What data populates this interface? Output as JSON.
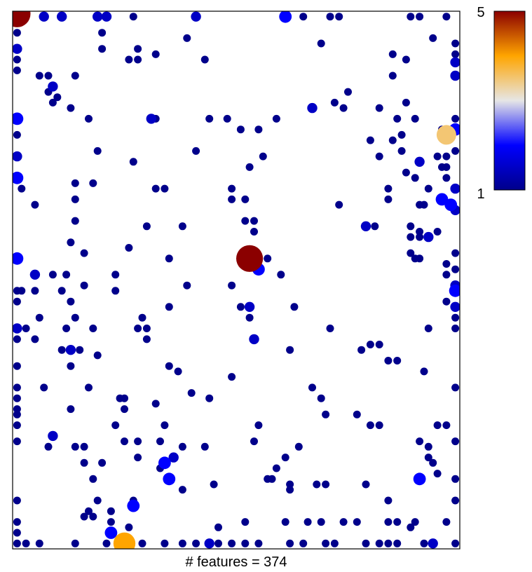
{
  "chart_data": {
    "type": "scatter",
    "title": "",
    "xlabel": "# features = 374",
    "ylabel": "",
    "x_axis_ticks": false,
    "y_axis_ticks": false,
    "grid": false,
    "legend": "colorbar-top-right",
    "size_encodes": "value",
    "color_encodes": "value",
    "colorbar": {
      "min": 1,
      "max": 5,
      "tick_labels": [
        "5",
        "1"
      ],
      "colors": [
        "#00008b",
        "#0000ff",
        "#e6e6e6",
        "#ffa500",
        "#8b0000"
      ]
    },
    "xlim": [
      0,
      100
    ],
    "ylim": [
      0,
      100
    ],
    "points": [
      [
        1,
        99.5,
        5
      ],
      [
        7,
        99,
        1.5
      ],
      [
        11,
        99,
        1.5
      ],
      [
        19,
        99,
        1.5
      ],
      [
        21,
        99,
        1.5
      ],
      [
        27,
        99,
        1
      ],
      [
        41,
        99,
        1.5
      ],
      [
        61,
        99,
        2
      ],
      [
        65,
        99,
        1
      ],
      [
        71,
        99,
        1
      ],
      [
        73,
        99,
        1
      ],
      [
        89,
        99,
        1
      ],
      [
        91,
        99,
        1
      ],
      [
        97,
        99,
        1
      ],
      [
        1,
        96,
        1
      ],
      [
        20,
        96,
        1
      ],
      [
        39,
        95,
        1
      ],
      [
        69,
        94,
        1
      ],
      [
        94,
        95,
        1
      ],
      [
        99,
        94,
        1
      ],
      [
        1,
        93,
        1.5
      ],
      [
        1,
        91,
        1
      ],
      [
        20,
        93,
        1
      ],
      [
        28,
        93,
        1
      ],
      [
        32,
        92,
        1
      ],
      [
        43,
        91,
        1
      ],
      [
        26,
        91,
        1
      ],
      [
        28,
        91,
        1
      ],
      [
        85,
        92,
        1
      ],
      [
        88,
        91,
        1
      ],
      [
        99,
        92,
        1
      ],
      [
        99,
        90.5,
        1.5
      ],
      [
        1,
        89,
        1
      ],
      [
        6,
        88,
        1
      ],
      [
        8,
        88,
        1
      ],
      [
        14,
        88,
        1
      ],
      [
        85,
        88,
        1
      ],
      [
        99,
        88,
        1.5
      ],
      [
        9,
        86,
        1.5
      ],
      [
        8,
        85,
        1
      ],
      [
        10,
        84,
        1
      ],
      [
        75,
        85,
        1
      ],
      [
        9,
        83,
        1
      ],
      [
        13,
        82,
        1
      ],
      [
        67,
        82,
        1.5
      ],
      [
        72,
        83,
        1
      ],
      [
        74,
        82,
        1
      ],
      [
        82,
        82,
        1
      ],
      [
        88,
        83,
        1
      ],
      [
        1,
        80,
        2
      ],
      [
        17,
        80,
        1
      ],
      [
        31,
        80,
        1.5
      ],
      [
        32,
        80,
        1
      ],
      [
        44,
        80,
        1
      ],
      [
        48,
        80,
        1
      ],
      [
        59,
        80,
        1
      ],
      [
        86,
        80,
        1
      ],
      [
        90,
        80,
        1
      ],
      [
        99,
        80,
        1
      ],
      [
        51,
        78,
        1
      ],
      [
        55,
        78,
        1
      ],
      [
        96,
        78,
        1
      ],
      [
        99,
        78,
        2
      ],
      [
        97,
        77,
        3.5
      ],
      [
        1,
        77,
        1
      ],
      [
        87,
        77,
        1
      ],
      [
        80,
        76,
        1
      ],
      [
        85,
        76,
        1
      ],
      [
        1,
        73,
        1.5
      ],
      [
        19,
        74,
        1
      ],
      [
        41,
        74,
        1
      ],
      [
        99,
        74,
        1
      ],
      [
        91,
        72,
        1.5
      ],
      [
        56,
        73,
        1
      ],
      [
        82,
        73,
        1
      ],
      [
        87,
        74,
        1
      ],
      [
        95,
        73,
        1
      ],
      [
        97,
        73,
        1
      ],
      [
        1,
        69,
        2
      ],
      [
        96,
        71,
        1
      ],
      [
        53,
        71,
        1
      ],
      [
        27,
        72,
        1
      ],
      [
        97,
        71,
        1
      ],
      [
        14,
        68,
        1
      ],
      [
        18,
        68,
        1
      ],
      [
        97,
        69,
        1
      ],
      [
        88,
        70,
        1
      ],
      [
        90,
        69,
        1
      ],
      [
        2,
        67,
        1
      ],
      [
        32,
        67,
        1
      ],
      [
        34,
        67,
        1
      ],
      [
        49,
        67,
        1
      ],
      [
        84,
        67,
        1
      ],
      [
        93,
        67,
        1
      ],
      [
        99,
        67,
        1.5
      ],
      [
        5,
        64,
        1
      ],
      [
        14,
        65,
        1
      ],
      [
        49,
        65,
        1
      ],
      [
        52,
        65,
        1
      ],
      [
        73,
        64,
        1
      ],
      [
        84,
        65,
        1
      ],
      [
        91,
        64,
        1
      ],
      [
        92,
        64,
        1
      ],
      [
        96,
        65,
        2
      ],
      [
        98,
        64,
        2
      ],
      [
        99,
        63,
        1.5
      ],
      [
        14,
        61,
        1
      ],
      [
        30,
        60,
        1
      ],
      [
        38,
        60,
        1
      ],
      [
        52,
        61,
        1
      ],
      [
        54,
        61,
        1
      ],
      [
        79,
        60,
        1.5
      ],
      [
        81,
        60,
        1
      ],
      [
        89,
        60,
        1
      ],
      [
        91,
        59,
        1
      ],
      [
        95,
        59,
        1
      ],
      [
        13,
        57,
        1
      ],
      [
        26,
        56,
        1
      ],
      [
        54,
        59,
        1
      ],
      [
        93,
        58,
        1.5
      ],
      [
        89,
        58,
        1
      ],
      [
        91,
        58,
        1
      ],
      [
        1,
        54,
        2
      ],
      [
        16,
        55,
        1
      ],
      [
        35,
        54,
        1
      ],
      [
        53,
        54,
        5
      ],
      [
        57,
        54,
        1
      ],
      [
        89,
        55,
        1
      ],
      [
        90,
        54,
        1
      ],
      [
        91,
        54,
        1
      ],
      [
        99,
        55,
        1
      ],
      [
        55,
        52,
        2
      ],
      [
        97,
        53,
        1
      ],
      [
        99,
        52,
        1
      ],
      [
        5,
        51,
        1.5
      ],
      [
        9,
        51,
        1
      ],
      [
        12,
        51,
        1
      ],
      [
        23,
        51,
        1
      ],
      [
        60,
        51,
        1
      ],
      [
        97,
        51,
        1
      ],
      [
        1,
        48,
        1
      ],
      [
        16,
        49,
        1
      ],
      [
        39,
        49,
        1
      ],
      [
        49,
        49,
        1
      ],
      [
        99,
        49,
        1.5
      ],
      [
        2,
        48,
        1
      ],
      [
        5,
        48,
        1
      ],
      [
        11,
        48,
        1
      ],
      [
        23,
        48,
        1
      ],
      [
        99,
        48,
        2
      ],
      [
        1,
        46,
        1
      ],
      [
        13,
        46,
        1
      ],
      [
        35,
        45,
        1
      ],
      [
        51,
        45,
        1
      ],
      [
        53,
        45,
        1.5
      ],
      [
        63,
        45,
        1
      ],
      [
        97,
        46,
        1
      ],
      [
        99,
        45,
        1.5
      ],
      [
        6,
        43,
        1
      ],
      [
        14,
        43,
        1
      ],
      [
        29,
        43,
        1
      ],
      [
        53,
        43,
        1
      ],
      [
        99,
        43,
        1
      ],
      [
        1,
        41,
        1
      ],
      [
        1,
        41,
        1.5
      ],
      [
        3,
        41,
        1
      ],
      [
        12,
        41,
        1
      ],
      [
        18,
        41,
        1
      ],
      [
        28,
        41,
        1
      ],
      [
        30,
        41,
        1
      ],
      [
        71,
        41,
        1
      ],
      [
        93,
        41,
        1
      ],
      [
        99,
        41,
        1
      ],
      [
        1,
        39,
        1
      ],
      [
        5,
        39,
        1
      ],
      [
        30,
        39,
        1
      ],
      [
        54,
        39,
        1.5
      ],
      [
        80,
        38,
        1
      ],
      [
        82,
        38,
        1
      ],
      [
        13,
        37,
        1.5
      ],
      [
        15,
        37,
        1
      ],
      [
        11,
        37,
        1
      ],
      [
        19,
        36,
        1
      ],
      [
        62,
        37,
        1
      ],
      [
        78,
        37,
        1
      ],
      [
        84,
        35,
        1
      ],
      [
        86,
        35,
        1
      ],
      [
        1,
        34,
        1
      ],
      [
        13,
        34,
        1
      ],
      [
        35,
        34,
        1
      ],
      [
        37,
        33,
        1
      ],
      [
        49,
        32,
        1
      ],
      [
        92,
        33,
        1
      ],
      [
        1,
        30,
        1
      ],
      [
        7,
        30,
        1
      ],
      [
        17,
        30,
        1
      ],
      [
        40,
        29,
        1
      ],
      [
        67,
        30,
        1
      ],
      [
        99,
        30,
        1
      ],
      [
        1,
        28,
        1
      ],
      [
        24,
        28,
        1
      ],
      [
        44,
        28,
        1
      ],
      [
        69,
        28,
        1
      ],
      [
        1,
        26,
        1
      ],
      [
        13,
        26,
        1
      ],
      [
        25,
        28,
        1
      ],
      [
        25,
        26,
        1
      ],
      [
        32,
        27,
        1
      ],
      [
        1,
        25,
        1
      ],
      [
        70,
        25,
        1
      ],
      [
        77,
        25,
        1
      ],
      [
        1,
        23,
        1
      ],
      [
        23,
        23,
        1
      ],
      [
        34,
        23,
        1
      ],
      [
        55,
        23,
        1
      ],
      [
        80,
        23,
        1
      ],
      [
        82,
        23,
        1
      ],
      [
        95,
        23,
        1
      ],
      [
        97,
        23,
        1
      ],
      [
        9,
        21,
        1.5
      ],
      [
        1,
        20,
        1
      ],
      [
        8,
        19,
        1
      ],
      [
        14,
        19,
        1
      ],
      [
        16,
        19,
        1
      ],
      [
        25,
        20,
        1
      ],
      [
        28,
        20,
        1
      ],
      [
        33,
        20,
        1
      ],
      [
        38,
        19,
        1
      ],
      [
        43,
        19,
        1
      ],
      [
        54,
        20,
        1
      ],
      [
        64,
        19,
        1
      ],
      [
        91,
        20,
        1
      ],
      [
        93,
        19,
        1
      ],
      [
        99,
        20,
        1
      ],
      [
        16,
        16,
        1
      ],
      [
        20,
        16,
        1
      ],
      [
        33,
        15,
        1
      ],
      [
        36,
        17,
        1.5
      ],
      [
        28,
        17,
        1
      ],
      [
        34,
        16,
        2
      ],
      [
        93,
        17,
        1
      ],
      [
        94,
        16,
        1
      ],
      [
        95,
        14,
        1
      ],
      [
        61,
        17,
        1
      ],
      [
        59,
        15,
        1
      ],
      [
        57,
        13,
        1
      ],
      [
        18,
        13,
        1
      ],
      [
        35,
        13,
        2
      ],
      [
        38,
        11,
        1
      ],
      [
        45,
        12,
        1
      ],
      [
        62,
        12,
        1
      ],
      [
        68,
        12,
        1
      ],
      [
        70,
        12,
        1
      ],
      [
        62,
        11,
        1
      ],
      [
        58,
        13,
        1
      ],
      [
        79,
        12,
        1
      ],
      [
        91,
        13,
        2
      ],
      [
        99,
        13,
        1
      ],
      [
        19,
        9,
        1
      ],
      [
        27,
        9,
        1
      ],
      [
        17,
        7,
        1
      ],
      [
        22,
        7,
        1
      ],
      [
        27,
        8,
        2
      ],
      [
        84,
        9,
        1
      ],
      [
        1,
        9,
        1
      ],
      [
        99,
        9,
        1
      ],
      [
        16,
        6,
        1
      ],
      [
        18,
        6,
        1
      ],
      [
        22,
        5,
        1
      ],
      [
        52,
        5,
        1
      ],
      [
        61,
        5,
        1
      ],
      [
        66,
        5,
        1
      ],
      [
        69,
        5,
        1
      ],
      [
        74,
        5,
        1
      ],
      [
        77,
        5,
        1
      ],
      [
        84,
        5,
        1
      ],
      [
        86,
        5,
        1
      ],
      [
        90,
        5,
        1
      ],
      [
        97,
        5,
        1
      ],
      [
        1,
        5,
        1
      ],
      [
        1,
        3,
        1
      ],
      [
        22,
        3,
        2
      ],
      [
        26,
        4,
        1
      ],
      [
        89,
        4,
        1
      ],
      [
        46,
        4,
        1
      ],
      [
        1,
        1,
        1
      ],
      [
        3,
        1,
        1
      ],
      [
        6,
        1,
        1
      ],
      [
        14,
        1,
        1
      ],
      [
        21,
        1,
        1
      ],
      [
        25,
        1,
        4
      ],
      [
        29,
        1,
        1
      ],
      [
        34,
        1,
        1
      ],
      [
        38,
        1,
        1
      ],
      [
        41,
        1,
        1
      ],
      [
        44,
        1,
        1.5
      ],
      [
        46,
        1,
        1
      ],
      [
        49,
        1,
        1
      ],
      [
        52,
        1,
        1
      ],
      [
        55,
        1,
        1
      ],
      [
        62,
        1,
        1
      ],
      [
        65,
        1,
        1
      ],
      [
        70,
        1,
        1
      ],
      [
        72,
        1,
        1
      ],
      [
        79,
        1,
        1
      ],
      [
        82,
        1,
        1
      ],
      [
        84,
        1,
        1
      ],
      [
        86,
        1,
        1
      ],
      [
        92,
        1,
        1
      ],
      [
        94,
        1,
        1.5
      ],
      [
        99,
        1,
        1
      ]
    ]
  }
}
